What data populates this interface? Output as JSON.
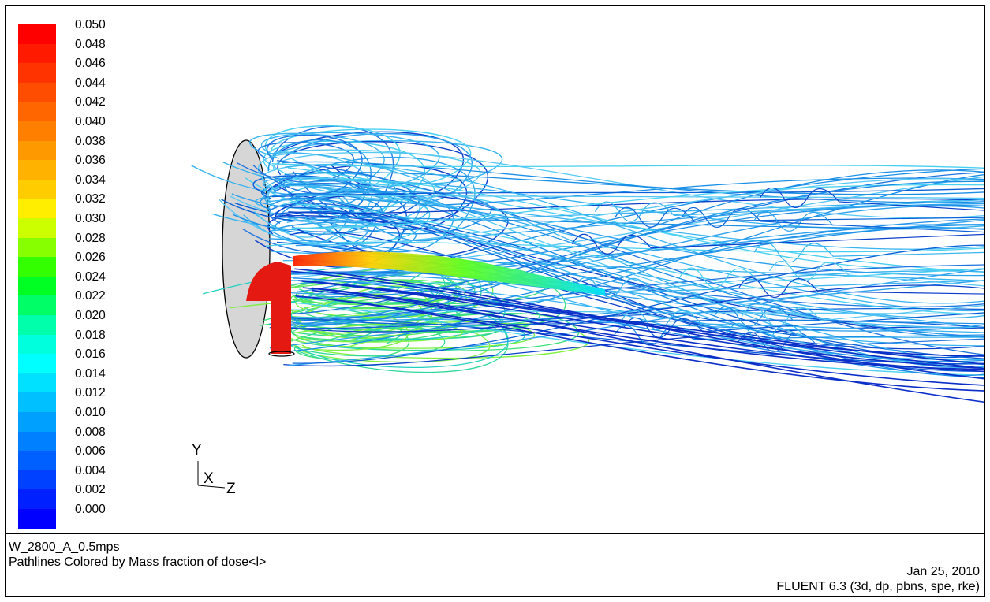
{
  "colorbar": {
    "labels": [
      "0.050",
      "0.048",
      "0.046",
      "0.044",
      "0.042",
      "0.040",
      "0.038",
      "0.036",
      "0.034",
      "0.032",
      "0.030",
      "0.028",
      "0.026",
      "0.024",
      "0.022",
      "0.020",
      "0.018",
      "0.016",
      "0.014",
      "0.012",
      "0.010",
      "0.008",
      "0.006",
      "0.004",
      "0.002",
      "0.000"
    ],
    "colors": [
      "#ff0000",
      "#ff1a00",
      "#ff3300",
      "#ff4d00",
      "#ff6600",
      "#ff8000",
      "#ff9900",
      "#ffb300",
      "#ffcc00",
      "#ffee00",
      "#ccff00",
      "#88ff00",
      "#33ff00",
      "#00ff22",
      "#00ff66",
      "#00ffaa",
      "#00ffdd",
      "#00ffff",
      "#00e0ff",
      "#00c0ff",
      "#00a0ff",
      "#0080ff",
      "#0060ff",
      "#0040ff",
      "#0020ff",
      "#0000ff"
    ]
  },
  "axes": {
    "y": "Y",
    "x": "X",
    "z": "Z"
  },
  "footer": {
    "case_name": "W_2800_A_0.5mps",
    "description": "Pathlines Colored by Mass fraction of dose<l>",
    "date": "Jan 25, 2010",
    "solver": "FLUENT 6.3 (3d, dp, pbns, spe, rke)"
  }
}
